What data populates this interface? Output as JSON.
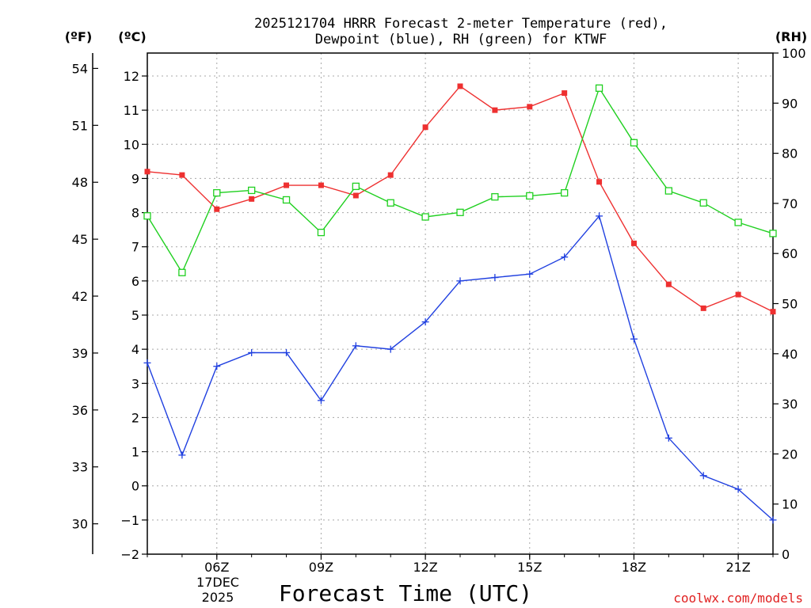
{
  "chart_data": {
    "type": "line",
    "title_lines": [
      "2025121704 HRRR Forecast 2-meter Temperature (red),",
      "Dewpoint (blue), RH (green) for KTWF"
    ],
    "units": {
      "fahrenheit": "(ºF)",
      "celsius": "(ºC)",
      "rh": "(RH)"
    },
    "xlabel": "Forecast Time (UTC)",
    "date_label": [
      "17DEC",
      "2025"
    ],
    "credit": "coolwx.com/models",
    "x": [
      4,
      5,
      6,
      7,
      8,
      9,
      10,
      11,
      12,
      13,
      14,
      15,
      16,
      17,
      18,
      19,
      20,
      21,
      22
    ],
    "xlim": [
      4,
      22
    ],
    "x_ticks": [
      {
        "value": 6,
        "label": "06Z"
      },
      {
        "value": 9,
        "label": "09Z"
      },
      {
        "value": 12,
        "label": "12Z"
      },
      {
        "value": 15,
        "label": "15Z"
      },
      {
        "value": 18,
        "label": "18Z"
      },
      {
        "value": 21,
        "label": "21Z"
      }
    ],
    "ylim_celsius": [
      -2,
      12.5
    ],
    "y_ticks_celsius": [
      -2,
      -1,
      0,
      1,
      2,
      3,
      4,
      5,
      6,
      7,
      8,
      9,
      10,
      11,
      12
    ],
    "y_ticks_fahrenheit": [
      30,
      33,
      36,
      39,
      42,
      45,
      48,
      51,
      54
    ],
    "ylim_rh": [
      0,
      100
    ],
    "y_ticks_rh": [
      0,
      10,
      20,
      30,
      40,
      50,
      60,
      70,
      80,
      90,
      100
    ],
    "grid": true,
    "series": [
      {
        "name": "Temperature",
        "axis": "celsius",
        "color": "#ee3030",
        "marker": "filled-square",
        "values": [
          9.2,
          9.1,
          8.1,
          8.4,
          8.8,
          8.8,
          8.5,
          9.1,
          10.5,
          11.7,
          11.0,
          11.1,
          11.5,
          8.9,
          7.1,
          5.9,
          5.2,
          5.6,
          5.1
        ]
      },
      {
        "name": "Dewpoint",
        "axis": "celsius",
        "color": "#2040e0",
        "marker": "plus",
        "values": [
          3.6,
          0.9,
          3.5,
          3.9,
          3.9,
          2.5,
          4.1,
          4.0,
          4.8,
          6.0,
          6.1,
          6.2,
          6.7,
          7.9,
          4.3,
          1.4,
          0.3,
          -0.1,
          -1.0
        ]
      },
      {
        "name": "RH",
        "axis": "rh",
        "color": "#20d020",
        "marker": "open-square",
        "values": [
          67.5,
          56.2,
          72.1,
          72.6,
          70.7,
          64.2,
          73.4,
          70.1,
          67.3,
          68.2,
          71.3,
          71.5,
          72.1,
          93.0,
          82.1,
          72.5,
          70.1,
          66.2,
          64.0
        ]
      }
    ]
  }
}
